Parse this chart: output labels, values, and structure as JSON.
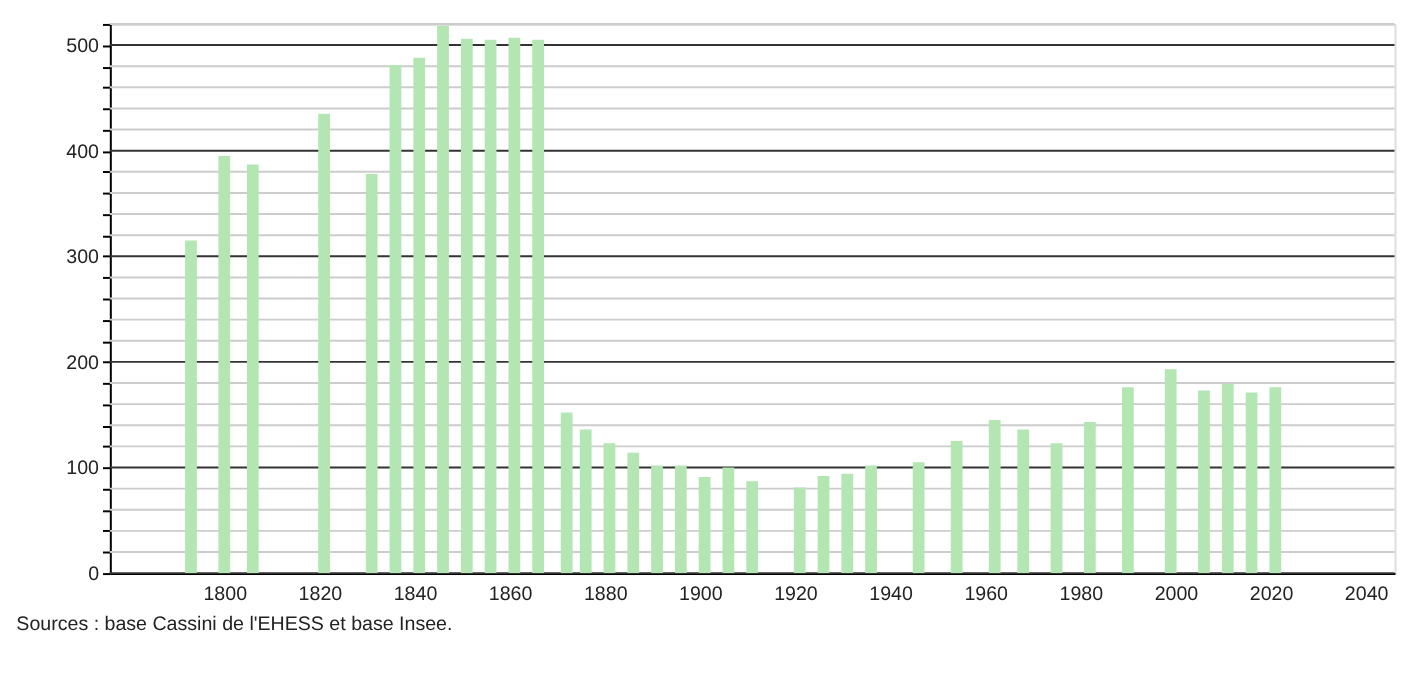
{
  "chart_data": {
    "type": "bar",
    "x": [
      1793,
      1800,
      1806,
      1821,
      1831,
      1836,
      1841,
      1846,
      1851,
      1856,
      1861,
      1866,
      1872,
      1876,
      1881,
      1886,
      1891,
      1896,
      1901,
      1906,
      1911,
      1921,
      1926,
      1931,
      1936,
      1946,
      1954,
      1962,
      1968,
      1975,
      1982,
      1990,
      1999,
      2006,
      2011,
      2016,
      2021
    ],
    "values": [
      315,
      395,
      387,
      435,
      378,
      481,
      488,
      518,
      506,
      505,
      507,
      505,
      152,
      136,
      123,
      114,
      102,
      102,
      91,
      100,
      87,
      81,
      92,
      94,
      102,
      105,
      125,
      145,
      136,
      123,
      143,
      176,
      193,
      173,
      179,
      171,
      176
    ],
    "color": "#b3e6b3",
    "xlim": [
      1778,
      2044
    ],
    "xticks": [
      1800,
      1820,
      1840,
      1860,
      1880,
      1900,
      1920,
      1940,
      1960,
      1980,
      2000,
      2020,
      2040
    ],
    "ylim": [
      0,
      520
    ],
    "yticks": [
      0,
      {
        "value": 20,
        "label": null
      },
      {
        "value": 40,
        "label": null
      },
      {
        "value": 60,
        "label": null
      },
      {
        "value": 80,
        "label": null
      },
      100,
      {
        "value": 120,
        "label": null
      },
      {
        "value": 140,
        "label": null
      },
      {
        "value": 160,
        "label": null
      },
      {
        "value": 180,
        "label": null
      },
      200,
      {
        "value": 220,
        "label": null
      },
      {
        "value": 240,
        "label": null
      },
      {
        "value": 260,
        "label": null
      },
      {
        "value": 280,
        "label": null
      },
      300,
      {
        "value": 320,
        "label": null
      },
      {
        "value": 340,
        "label": null
      },
      {
        "value": 360,
        "label": null
      },
      {
        "value": 380,
        "label": null
      },
      400,
      {
        "value": 420,
        "label": null
      },
      {
        "value": 440,
        "label": null
      },
      {
        "value": 460,
        "label": null
      },
      {
        "value": 480,
        "label": null
      },
      500,
      {
        "value": 520,
        "label": null
      }
    ],
    "grid": "y",
    "annotations": [
      "Sources : base Cassini de l'EHESS et base Insee."
    ]
  }
}
